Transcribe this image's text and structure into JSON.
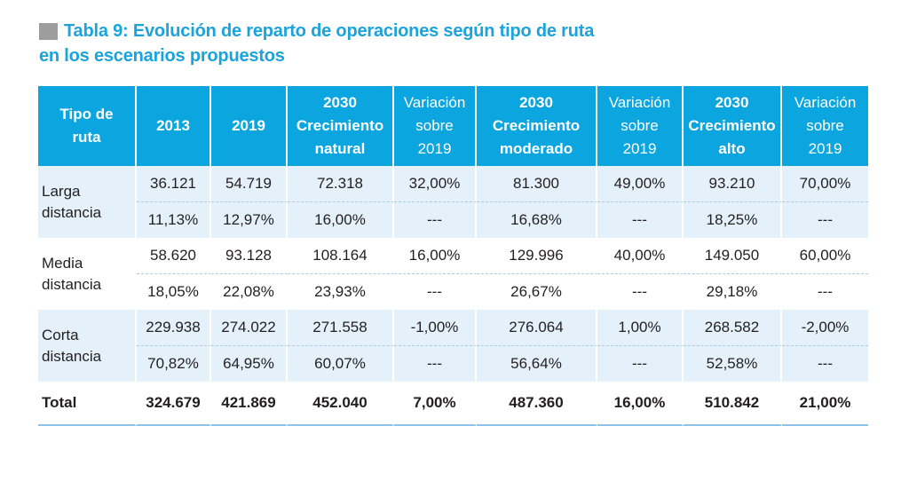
{
  "title": {
    "line1": "Tabla 9: Evolución de reparto de operaciones según tipo de ruta",
    "line2": "en los escenarios propuestos"
  },
  "table": {
    "headers": [
      [
        "Tipo de",
        "ruta"
      ],
      [
        "2013"
      ],
      [
        "2019"
      ],
      [
        "2030",
        "Crecimiento",
        "natural"
      ],
      [
        "Variación",
        "sobre",
        "2019"
      ],
      [
        "2030",
        "Crecimiento",
        "moderado"
      ],
      [
        "Variación",
        "sobre",
        "2019"
      ],
      [
        "2030",
        "Crecimiento",
        "alto"
      ],
      [
        "Variación",
        "sobre",
        "2019"
      ]
    ],
    "groups": [
      {
        "label": [
          "Larga",
          "distancia"
        ],
        "values": [
          "36.121",
          "54.719",
          "72.318",
          "32,00%",
          "81.300",
          "49,00%",
          "93.210",
          "70,00%"
        ],
        "shares": [
          "11,13%",
          "12,97%",
          "16,00%",
          "---",
          "16,68%",
          "---",
          "18,25%",
          "---"
        ]
      },
      {
        "label": [
          "Media",
          "distancia"
        ],
        "values": [
          "58.620",
          "93.128",
          "108.164",
          "16,00%",
          "129.996",
          "40,00%",
          "149.050",
          "60,00%"
        ],
        "shares": [
          "18,05%",
          "22,08%",
          "23,93%",
          "---",
          "26,67%",
          "---",
          "29,18%",
          "---"
        ]
      },
      {
        "label": [
          "Corta",
          "distancia"
        ],
        "values": [
          "229.938",
          "274.022",
          "271.558",
          "-1,00%",
          "276.064",
          "1,00%",
          "268.582",
          "-2,00%"
        ],
        "shares": [
          "70,82%",
          "64,95%",
          "60,07%",
          "---",
          "56,64%",
          "---",
          "52,58%",
          "---"
        ]
      }
    ],
    "total": {
      "label": "Total",
      "values": [
        "324.679",
        "421.869",
        "452.040",
        "7,00%",
        "487.360",
        "16,00%",
        "510.842",
        "21,00%"
      ]
    }
  }
}
